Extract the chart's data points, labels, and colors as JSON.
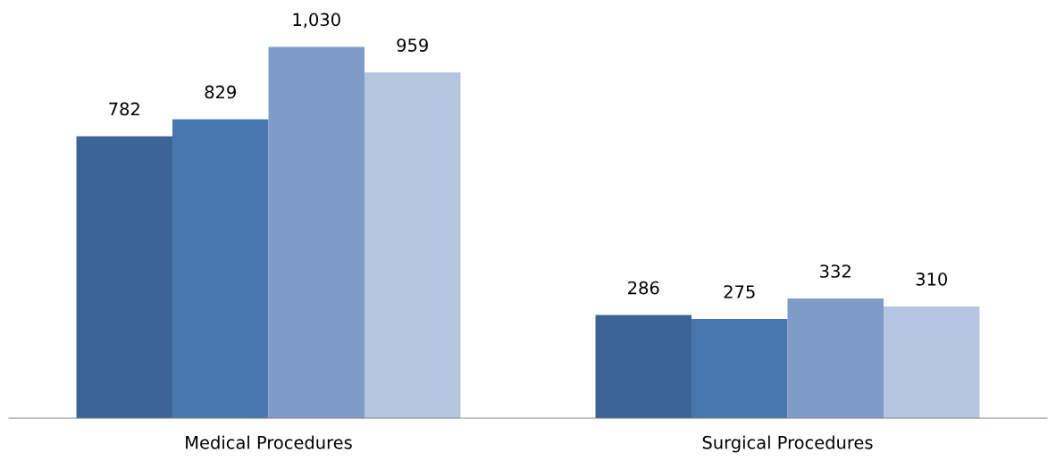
{
  "chart_data": {
    "type": "bar",
    "categories": [
      "Medical Procedures",
      "Surgical Procedures"
    ],
    "series": [
      {
        "color": "#3c6496",
        "values": [
          782,
          286
        ],
        "value_labels": [
          "782",
          "286"
        ]
      },
      {
        "color": "#4877b0",
        "values": [
          829,
          275
        ],
        "value_labels": [
          "829",
          "275"
        ]
      },
      {
        "color": "#7f9cc9",
        "values": [
          1030,
          332
        ],
        "value_labels": [
          "1,030",
          "332"
        ]
      },
      {
        "color": "#b5c4df",
        "values": [
          959,
          310
        ],
        "value_labels": [
          "959",
          "310"
        ]
      }
    ],
    "grid": false
  }
}
